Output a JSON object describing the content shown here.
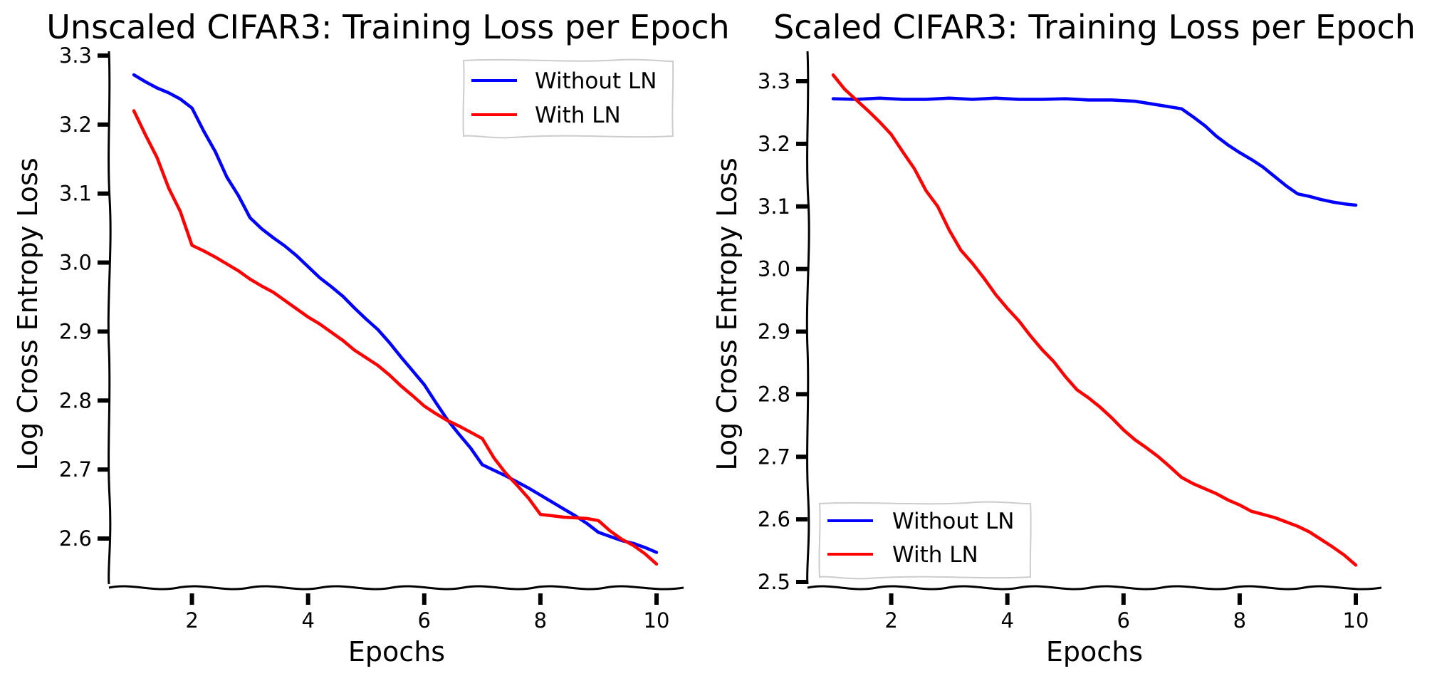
{
  "chart_data": [
    {
      "type": "line",
      "title": "Unscaled CIFAR3: Training Loss per Epoch",
      "xlabel": "Epochs",
      "ylabel": "Log Cross Entropy Loss",
      "xlim": [
        0.5,
        10.5
      ],
      "ylim": [
        2.535,
        3.31
      ],
      "x_ticks": [
        2,
        4,
        6,
        8,
        10
      ],
      "x_tick_labels": [
        "2",
        "4",
        "6",
        "8",
        "10"
      ],
      "y_ticks": [
        2.6,
        2.7,
        2.8,
        2.9,
        3.0,
        3.1,
        3.2,
        3.3
      ],
      "y_tick_labels": [
        "2.6",
        "2.7",
        "2.8",
        "2.9",
        "3.0",
        "3.1",
        "3.2",
        "3.3"
      ],
      "legend_position": "top-right",
      "grid": false,
      "series": [
        {
          "name": "Without LN",
          "color": "#0000ff",
          "x": [
            1,
            1.2,
            1.4,
            1.6,
            1.8,
            2,
            2.2,
            2.4,
            2.6,
            2.8,
            3,
            3.2,
            3.4,
            3.6,
            3.8,
            4,
            4.2,
            4.4,
            4.6,
            4.8,
            5,
            5.2,
            5.4,
            5.6,
            5.8,
            6,
            6.2,
            6.4,
            6.6,
            6.8,
            7,
            7.2,
            7.4,
            7.6,
            7.8,
            8,
            8.2,
            8.4,
            8.6,
            8.8,
            9,
            9.2,
            9.4,
            9.6,
            9.8,
            10
          ],
          "y": [
            3.272,
            3.262,
            3.253,
            3.246,
            3.237,
            3.224,
            3.191,
            3.161,
            3.124,
            3.097,
            3.065,
            3.049,
            3.036,
            3.024,
            3.01,
            2.994,
            2.978,
            2.965,
            2.951,
            2.934,
            2.918,
            2.903,
            2.884,
            2.863,
            2.843,
            2.823,
            2.797,
            2.772,
            2.751,
            2.731,
            2.707,
            2.699,
            2.691,
            2.682,
            2.673,
            2.663,
            2.653,
            2.643,
            2.633,
            2.622,
            2.609,
            2.603,
            2.597,
            2.593,
            2.587,
            2.58
          ]
        },
        {
          "name": "With LN",
          "color": "#ff0000",
          "x": [
            1,
            1.2,
            1.4,
            1.6,
            1.8,
            2,
            2.2,
            2.4,
            2.6,
            2.8,
            3,
            3.2,
            3.4,
            3.6,
            3.8,
            4,
            4.2,
            4.4,
            4.6,
            4.8,
            5,
            5.2,
            5.4,
            5.6,
            5.8,
            6,
            6.2,
            6.4,
            6.6,
            6.8,
            7,
            7.2,
            7.4,
            7.6,
            7.8,
            8,
            8.2,
            8.4,
            8.6,
            8.8,
            9,
            9.2,
            9.4,
            9.6,
            9.8,
            10
          ],
          "y": [
            3.22,
            3.185,
            3.152,
            3.108,
            3.074,
            3.025,
            3.017,
            3.008,
            2.998,
            2.988,
            2.976,
            2.966,
            2.957,
            2.945,
            2.933,
            2.921,
            2.911,
            2.899,
            2.887,
            2.873,
            2.862,
            2.851,
            2.837,
            2.821,
            2.807,
            2.792,
            2.781,
            2.771,
            2.763,
            2.754,
            2.745,
            2.717,
            2.695,
            2.677,
            2.658,
            2.635,
            2.633,
            2.631,
            2.63,
            2.629,
            2.626,
            2.611,
            2.599,
            2.59,
            2.578,
            2.563
          ]
        }
      ]
    },
    {
      "type": "line",
      "title": "Scaled CIFAR3: Training Loss per Epoch",
      "xlabel": "Epochs",
      "ylabel": "Log Cross Entropy Loss",
      "xlim": [
        0.5,
        10.5
      ],
      "ylim": [
        2.5,
        3.35
      ],
      "x_ticks": [
        2,
        4,
        6,
        8,
        10
      ],
      "x_tick_labels": [
        "2",
        "4",
        "6",
        "8",
        "10"
      ],
      "y_ticks": [
        2.5,
        2.6,
        2.7,
        2.8,
        2.9,
        3.0,
        3.1,
        3.2,
        3.3
      ],
      "y_tick_labels": [
        "2.5",
        "2.6",
        "2.7",
        "2.8",
        "2.9",
        "3.0",
        "3.1",
        "3.2",
        "3.3"
      ],
      "legend_position": "bottom-left",
      "grid": false,
      "series": [
        {
          "name": "Without LN",
          "color": "#0000ff",
          "x": [
            1,
            1.4,
            1.8,
            2.2,
            2.6,
            3,
            3.4,
            3.8,
            4.2,
            4.6,
            5,
            5.4,
            5.8,
            6.2,
            6.6,
            7,
            7.2,
            7.4,
            7.6,
            7.8,
            8,
            8.2,
            8.4,
            8.6,
            8.8,
            9,
            9.2,
            9.4,
            9.6,
            9.8,
            10
          ],
          "y": [
            3.272,
            3.271,
            3.273,
            3.271,
            3.271,
            3.273,
            3.271,
            3.273,
            3.271,
            3.271,
            3.272,
            3.27,
            3.27,
            3.268,
            3.262,
            3.256,
            3.243,
            3.229,
            3.212,
            3.198,
            3.186,
            3.175,
            3.163,
            3.148,
            3.133,
            3.12,
            3.116,
            3.111,
            3.107,
            3.104,
            3.102
          ]
        },
        {
          "name": "With LN",
          "color": "#ff0000",
          "x": [
            1,
            1.2,
            1.4,
            1.6,
            1.8,
            2,
            2.2,
            2.4,
            2.6,
            2.8,
            3,
            3.2,
            3.4,
            3.6,
            3.8,
            4,
            4.2,
            4.4,
            4.6,
            4.8,
            5,
            5.2,
            5.4,
            5.6,
            5.8,
            6,
            6.2,
            6.4,
            6.6,
            6.8,
            7,
            7.2,
            7.4,
            7.6,
            7.8,
            8,
            8.2,
            8.4,
            8.6,
            8.8,
            9,
            9.2,
            9.4,
            9.6,
            9.8,
            10
          ],
          "y": [
            3.31,
            3.287,
            3.27,
            3.253,
            3.235,
            3.215,
            3.187,
            3.16,
            3.125,
            3.1,
            3.062,
            3.03,
            3.009,
            2.985,
            2.959,
            2.937,
            2.917,
            2.893,
            2.871,
            2.852,
            2.828,
            2.807,
            2.794,
            2.779,
            2.762,
            2.743,
            2.727,
            2.714,
            2.7,
            2.684,
            2.667,
            2.657,
            2.649,
            2.641,
            2.631,
            2.623,
            2.613,
            2.608,
            2.603,
            2.596,
            2.589,
            2.58,
            2.568,
            2.556,
            2.543,
            2.527
          ]
        }
      ]
    }
  ]
}
